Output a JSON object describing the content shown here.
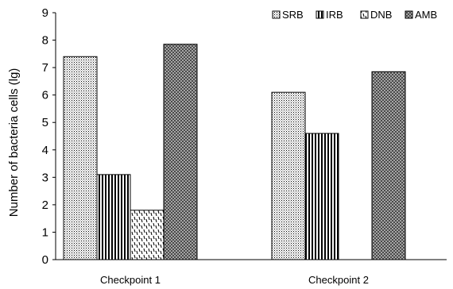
{
  "chart_data": {
    "type": "bar",
    "title": "",
    "xlabel": "",
    "ylabel": "Number  of  bacteria cells (lg)",
    "ylim": [
      0,
      9
    ],
    "yticks": [
      0,
      1,
      2,
      3,
      4,
      5,
      6,
      7,
      8,
      9
    ],
    "categories": [
      "Checkpoint  1",
      "Checkpoint 2"
    ],
    "series": [
      {
        "name": "SRB",
        "values": [
          7.4,
          6.1
        ],
        "pattern": "dots"
      },
      {
        "name": "IRB",
        "values": [
          3.1,
          4.6
        ],
        "pattern": "vertical-stripes"
      },
      {
        "name": "DNB",
        "values": [
          1.8,
          null
        ],
        "pattern": "dashes"
      },
      {
        "name": "AMB",
        "values": [
          7.85,
          6.85
        ],
        "pattern": "crosshatch"
      }
    ],
    "grid": false,
    "legend_position": "top-right",
    "colors": {
      "ink": "#000000",
      "background": "#ffffff"
    }
  }
}
